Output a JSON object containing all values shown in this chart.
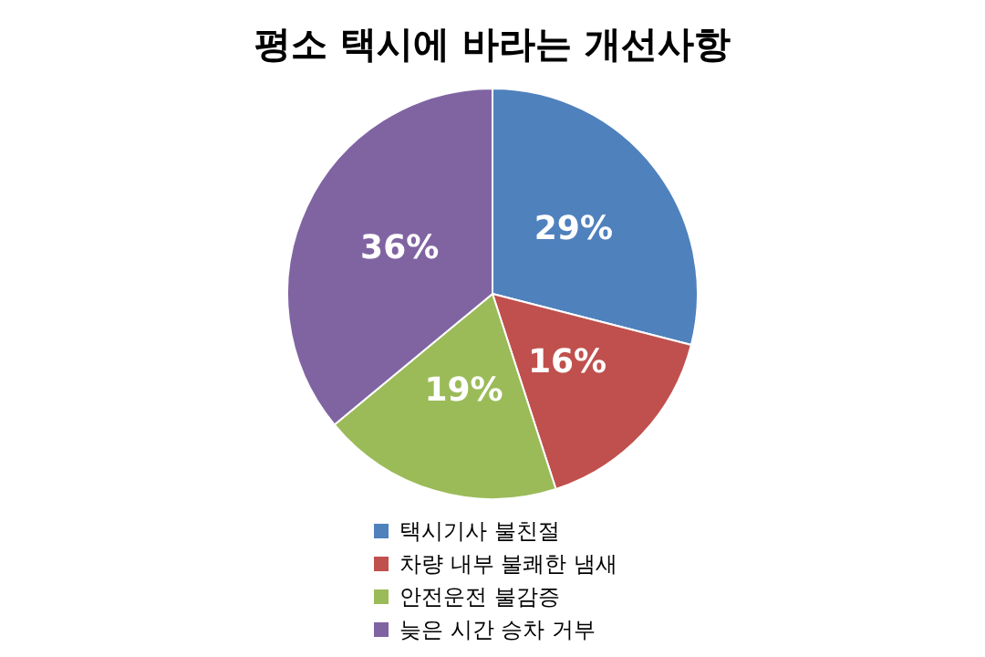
{
  "chart_data": {
    "type": "pie",
    "title": "평소 택시에 바라는 개선사항",
    "categories": [
      "택시기사 불친절",
      "차량 내부 불쾌한 냄새",
      "안전운전 불감증",
      "늦은 시간 승차 거부"
    ],
    "values": [
      29,
      16,
      19,
      36
    ],
    "value_labels": [
      "29%",
      "16%",
      "19%",
      "36%"
    ],
    "colors": [
      "#4f81bd",
      "#c0504d",
      "#9bbb59",
      "#8064a2"
    ],
    "legend": "bottom"
  }
}
